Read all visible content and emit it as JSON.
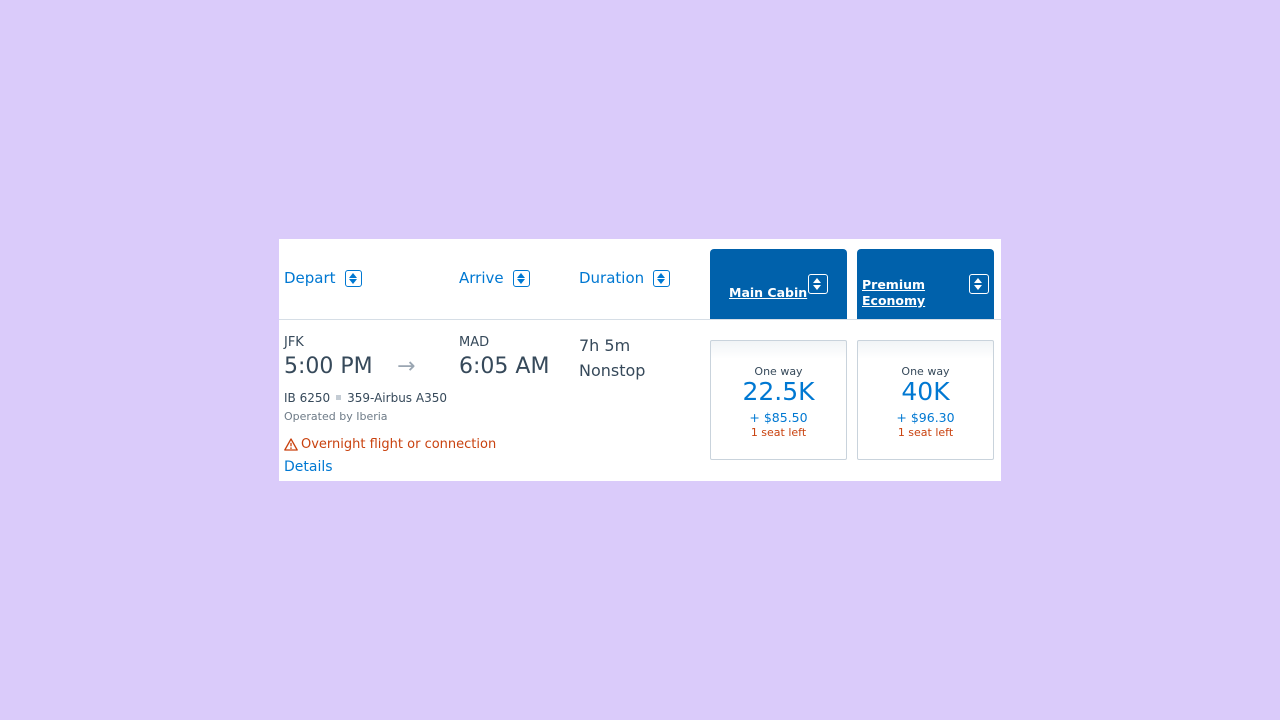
{
  "headers": {
    "depart": "Depart",
    "arrive": "Arrive",
    "duration": "Duration"
  },
  "cabins": [
    {
      "label": "Main Cabin"
    },
    {
      "label": "Premium Economy"
    }
  ],
  "flight": {
    "origin": "JFK",
    "depart_time": "5:00 PM",
    "destination": "MAD",
    "arrive_time": "6:05 AM",
    "flight_number": "IB 6250",
    "aircraft": "359-Airbus A350",
    "operated_by": "Operated by Iberia",
    "duration": "7h 5m",
    "stops": "Nonstop",
    "warning": "Overnight flight or connection",
    "details_link": "Details"
  },
  "fares": [
    {
      "trip": "One way",
      "miles": "22.5K",
      "taxes": "+ $85.50",
      "seats": "1 seat left"
    },
    {
      "trip": "One way",
      "miles": "40K",
      "taxes": "+ $96.30",
      "seats": "1 seat left"
    }
  ],
  "colors": {
    "background": "#dacbfa",
    "link_blue": "#0078d2",
    "cabin_header": "#0061ab",
    "warning": "#c9420f"
  }
}
